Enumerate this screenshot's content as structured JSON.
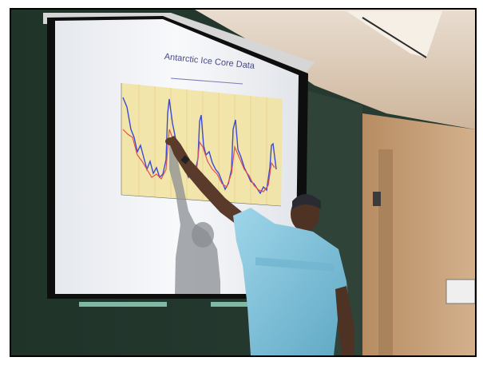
{
  "slide": {
    "title": "Antarctic Ice Core Data"
  },
  "colors": {
    "wall_green": "#233a30",
    "chalkboard": "#2c4038",
    "screen": "#f4f5f7",
    "plot_bg": "#f5e6a8",
    "blue_series": "#3a4ad6",
    "red_series": "#e05050",
    "shirt": "#7ec4dc",
    "wood_wall": "#c7a47c"
  },
  "icons": {
    "person": "presenter-figure",
    "screen": "projection-screen"
  }
}
